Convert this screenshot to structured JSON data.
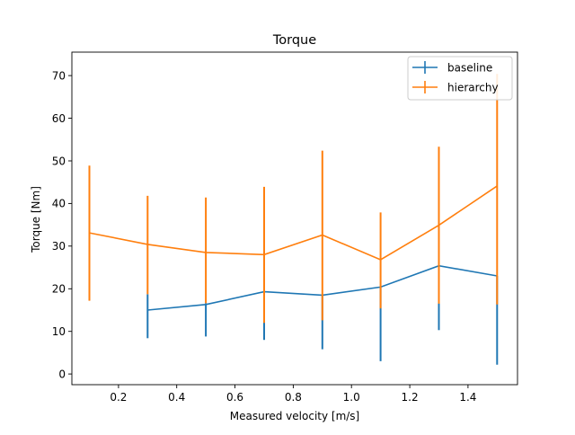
{
  "chart_data": {
    "type": "line",
    "title": "Torque",
    "xlabel": "Measured velocity [m/s]",
    "ylabel": "Torque [Nm]",
    "xlim": [
      0.04,
      1.57
    ],
    "ylim": [
      -2.5,
      75.5
    ],
    "xticks": [
      0.2,
      0.4,
      0.6,
      0.8,
      1.0,
      1.2,
      1.4
    ],
    "xtick_labels": [
      "0.2",
      "0.4",
      "0.6",
      "0.8",
      "1.0",
      "1.2",
      "1.4"
    ],
    "yticks": [
      0,
      10,
      20,
      30,
      40,
      50,
      60,
      70
    ],
    "ytick_labels": [
      "0",
      "10",
      "20",
      "30",
      "40",
      "50",
      "60",
      "70"
    ],
    "grid": false,
    "legend_position": "top-right",
    "series": [
      {
        "name": "baseline",
        "color": "#1f77b4",
        "x": [
          0.3,
          0.5,
          0.7,
          0.9,
          1.1,
          1.3,
          1.5
        ],
        "y": [
          15.0,
          16.3,
          19.3,
          18.5,
          20.4,
          25.4,
          23.0
        ],
        "yerr_low": [
          8.4,
          8.8,
          8.0,
          5.8,
          3.0,
          10.3,
          2.2
        ],
        "yerr_high": [
          18.7,
          16.6,
          19.3,
          18.5,
          20.4,
          25.4,
          23.0
        ]
      },
      {
        "name": "hierarchy",
        "color": "#ff7f0e",
        "x": [
          0.1,
          0.3,
          0.5,
          0.7,
          0.9,
          1.1,
          1.3,
          1.5
        ],
        "y": [
          33.1,
          30.4,
          28.5,
          28.0,
          32.6,
          26.8,
          34.9,
          44.1
        ],
        "yerr_low": [
          17.2,
          18.7,
          16.6,
          12.0,
          12.6,
          15.4,
          16.5,
          16.3
        ],
        "yerr_high": [
          48.9,
          41.8,
          41.4,
          43.9,
          52.4,
          37.9,
          53.3,
          70.4
        ]
      }
    ]
  }
}
